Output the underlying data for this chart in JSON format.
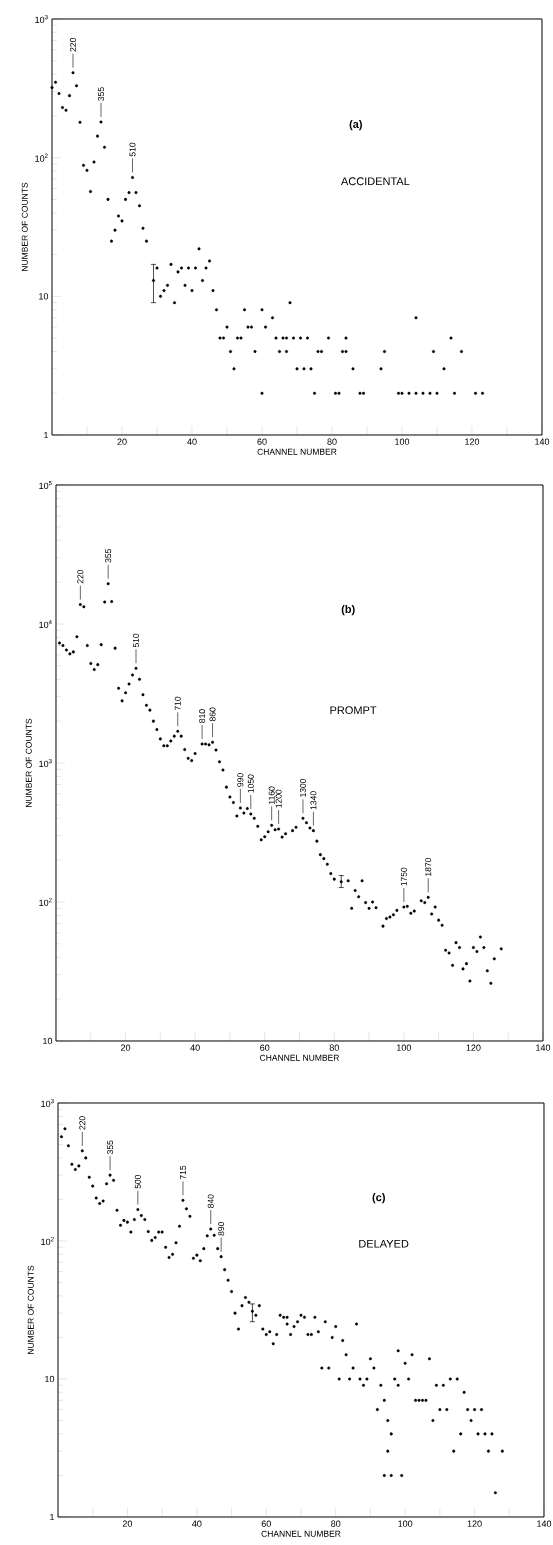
{
  "chart_data": [
    {
      "type": "scatter",
      "title": "(a)",
      "subtitle": "ACCIDENTAL",
      "xlabel": "CHANNEL NUMBER",
      "ylabel": "NUMBER OF COUNTS",
      "log": "y",
      "marker": "circle",
      "xlim": [
        0,
        140
      ],
      "ylim": [
        1,
        1000
      ],
      "xticks": [
        {
          "value": 10,
          "label": null
        },
        20,
        {
          "value": 30,
          "label": null
        },
        40,
        {
          "value": 50,
          "label": null
        },
        60,
        {
          "value": 70,
          "label": null
        },
        80,
        {
          "value": 90,
          "label": null
        },
        100,
        {
          "value": 110,
          "label": null
        },
        120,
        {
          "value": 130,
          "label": null
        },
        140
      ],
      "yticks": [
        1,
        10,
        {
          "value": 100,
          "label": "10$^{2}$"
        },
        {
          "value": 1000,
          "label": "10$^{3}$"
        }
      ],
      "series": [
        {
          "color": "#000000",
          "x": [
            0,
            1,
            2,
            3,
            4,
            5,
            6,
            7,
            8,
            9,
            10,
            11,
            12,
            13,
            14,
            15,
            16,
            17,
            18,
            19,
            20,
            21,
            22,
            23,
            24,
            25,
            26,
            27,
            30,
            31,
            32,
            33,
            34,
            35,
            36,
            37,
            38,
            39,
            40,
            41,
            42,
            43,
            44,
            45,
            46,
            47,
            48,
            49,
            50,
            51,
            52,
            53,
            54,
            55,
            56,
            57,
            58,
            60,
            60,
            61,
            63,
            64,
            65,
            66,
            67,
            67,
            68,
            69,
            70,
            71,
            72,
            73,
            74,
            75,
            76,
            77,
            79,
            81,
            82,
            83,
            84,
            84,
            86,
            88,
            89,
            94,
            95,
            99,
            100,
            102,
            104,
            104,
            106,
            108,
            109,
            110,
            112,
            114,
            115,
            117,
            121,
            123
          ],
          "values": [
            320,
            350,
            290,
            230,
            220,
            280,
            410,
            330,
            180,
            88,
            81,
            57,
            93,
            143,
            181,
            119,
            50,
            25,
            30,
            38,
            35,
            50,
            56,
            72,
            56,
            45,
            31,
            25,
            16,
            10,
            11,
            12,
            17,
            9,
            15,
            16,
            12,
            16,
            11,
            16,
            22,
            13,
            16,
            18,
            11,
            8,
            5,
            5,
            6,
            4,
            3,
            5,
            5,
            8,
            6,
            6,
            4,
            2,
            8,
            6,
            7,
            5,
            4,
            5,
            5,
            4,
            9,
            5,
            3,
            5,
            3,
            5,
            3,
            2,
            4,
            4,
            5,
            2,
            2,
            4,
            4,
            5,
            3,
            2,
            2,
            3,
            4,
            2,
            2,
            2,
            2,
            7,
            2,
            2,
            4,
            2,
            3,
            5,
            2,
            4,
            2,
            2
          ]
        },
        {
          "color": "#000000",
          "x": [
            29
          ],
          "values": [
            13
          ],
          "errors": [
            [
              9,
              17
            ]
          ]
        }
      ],
      "annotations": [
        {
          "text": "220",
          "x": 6,
          "y": 410
        },
        {
          "text": "355",
          "x": 14,
          "y": 181
        },
        {
          "text": "510",
          "x": 23,
          "y": 72
        }
      ]
    },
    {
      "type": "scatter",
      "title": "(b)",
      "subtitle": "PROMPT",
      "xlabel": "CHANNEL NUMBER",
      "ylabel": "NUMBER OF COUNTS",
      "log": "y",
      "marker": "circle",
      "xlim": [
        0,
        140
      ],
      "ylim": [
        10,
        100000
      ],
      "xticks": [
        {
          "value": 10,
          "label": null
        },
        20,
        {
          "value": 30,
          "label": null
        },
        40,
        {
          "value": 50,
          "label": null
        },
        60,
        {
          "value": 70,
          "label": null
        },
        80,
        {
          "value": 90,
          "label": null
        },
        100,
        {
          "value": 110,
          "label": null
        },
        120,
        {
          "value": 130,
          "label": null
        },
        140
      ],
      "yticks": [
        10,
        {
          "value": 100,
          "label": "10$^{2}$"
        },
        {
          "value": 1000,
          "label": "10$^{3}$"
        },
        {
          "value": 10000,
          "label": "10$^{4}$"
        },
        {
          "value": 100000,
          "label": "10$^{5}$"
        }
      ],
      "series": [
        {
          "color": "#000000",
          "x": [
            1,
            2,
            3,
            4,
            5,
            6,
            7,
            8,
            9,
            10,
            11,
            12,
            13,
            14,
            15,
            16,
            17,
            18,
            19,
            20,
            21,
            22,
            23,
            24,
            25,
            26,
            27,
            28,
            29,
            30,
            31,
            32,
            33,
            34,
            35,
            36,
            37,
            38,
            39,
            40,
            42,
            43,
            44,
            45,
            46,
            47,
            48,
            49,
            50,
            51,
            52,
            53,
            54,
            55,
            56,
            57,
            58,
            59,
            60,
            61,
            62,
            63,
            64,
            65,
            66,
            68,
            69,
            71,
            72,
            73,
            74,
            75,
            76,
            77,
            78,
            79,
            80,
            84,
            85,
            86,
            87,
            88,
            89,
            90,
            91,
            92,
            94,
            95,
            96,
            97,
            98,
            100,
            101,
            102,
            103,
            105,
            106,
            107,
            108,
            109,
            110,
            111,
            112,
            113,
            114,
            115,
            116,
            117,
            118,
            119,
            120,
            121,
            122,
            123,
            124,
            125,
            126,
            128
          ],
          "values": [
            7300,
            7000,
            6500,
            6100,
            6300,
            8100,
            13800,
            13300,
            7000,
            5200,
            4700,
            5100,
            7100,
            14400,
            19500,
            14500,
            6700,
            3450,
            2800,
            3200,
            3700,
            4300,
            4800,
            4000,
            3100,
            2600,
            2400,
            2000,
            1740,
            1490,
            1330,
            1330,
            1440,
            1560,
            1690,
            1560,
            1250,
            1080,
            1040,
            1170,
            1370,
            1370,
            1350,
            1410,
            1240,
            1020,
            890,
            670,
            570,
            520,
            416,
            475,
            436,
            470,
            430,
            400,
            350,
            280,
            295,
            320,
            356,
            331,
            335,
            293,
            310,
            326,
            345,
            400,
            372,
            341,
            326,
            274,
            219,
            205,
            187,
            160,
            146,
            142,
            90,
            121,
            109,
            142,
            99,
            90,
            100,
            91,
            67,
            76,
            78,
            81,
            87,
            92,
            93,
            83,
            86,
            102,
            99,
            108,
            82,
            92,
            74,
            68,
            45,
            43,
            35,
            51,
            47,
            33,
            36,
            27,
            47,
            44,
            56,
            47,
            32,
            26,
            39,
            46
          ]
        },
        {
          "color": "#000000",
          "x": [
            82
          ],
          "values": [
            140
          ],
          "errors": [
            [
              127,
              155
            ]
          ]
        }
      ],
      "annotations": [
        {
          "text": "220",
          "x": 7,
          "y": 13800
        },
        {
          "text": "355",
          "x": 15,
          "y": 19500
        },
        {
          "text": "510",
          "x": 23,
          "y": 4800
        },
        {
          "text": "710",
          "x": 35,
          "y": 1690
        },
        {
          "text": "810",
          "x": 42,
          "y": 1370
        },
        {
          "text": "860",
          "x": 45,
          "y": 1410
        },
        {
          "text": "990",
          "x": 53,
          "y": 475
        },
        {
          "text": "1050",
          "x": 56,
          "y": 430
        },
        {
          "text": "1160",
          "x": 62,
          "y": 356
        },
        {
          "text": "1200",
          "x": 64,
          "y": 335
        },
        {
          "text": "1300",
          "x": 71,
          "y": 400
        },
        {
          "text": "1340",
          "x": 74,
          "y": 326
        },
        {
          "text": "1750",
          "x": 100,
          "y": 92
        },
        {
          "text": "1870",
          "x": 107,
          "y": 108
        }
      ]
    },
    {
      "type": "scatter",
      "title": "(c)",
      "subtitle": "DELAYED",
      "xlabel": "CHANNEL NUMBER",
      "ylabel": "NUMBER OF COUNTS",
      "log": "y",
      "marker": "circle",
      "xlim": [
        0,
        140
      ],
      "ylim": [
        1,
        1000
      ],
      "xticks": [
        {
          "value": 10,
          "label": null
        },
        20,
        {
          "value": 30,
          "label": null
        },
        40,
        {
          "value": 50,
          "label": null
        },
        60,
        {
          "value": 70,
          "label": null
        },
        80,
        {
          "value": 90,
          "label": null
        },
        100,
        {
          "value": 110,
          "label": null
        },
        120,
        {
          "value": 130,
          "label": null
        },
        140
      ],
      "yticks": [
        1,
        10,
        {
          "value": 100,
          "label": "10$^{2}$"
        },
        {
          "value": 1000,
          "label": "10$^{3}$"
        }
      ],
      "series": [
        {
          "color": "#000000",
          "x": [
            1,
            2,
            3,
            4,
            5,
            6,
            7,
            8,
            9,
            10,
            11,
            12,
            13,
            14,
            15,
            16,
            17,
            18,
            19,
            20,
            21,
            22,
            23,
            24,
            25,
            26,
            27,
            28,
            29,
            30,
            31,
            32,
            33,
            34,
            35,
            36,
            37,
            38,
            39,
            40,
            41,
            42,
            43,
            44,
            45,
            46,
            47,
            48,
            49,
            50,
            51,
            52,
            53,
            54,
            55,
            57,
            58,
            59,
            60,
            61,
            62,
            63,
            64,
            65,
            66,
            66,
            67,
            68,
            69,
            70,
            71,
            72,
            73,
            74,
            75,
            76,
            77,
            78,
            79,
            80,
            81,
            82,
            83,
            84,
            85,
            86,
            87,
            88,
            89,
            90,
            91,
            92,
            93,
            94,
            94,
            95,
            95,
            96,
            96,
            97,
            98,
            98,
            99,
            100,
            101,
            102,
            103,
            104,
            105,
            106,
            107,
            108,
            109,
            110,
            111,
            112,
            113,
            114,
            115,
            116,
            117,
            118,
            119,
            120,
            121,
            122,
            123,
            124,
            125,
            126,
            128
          ],
          "values": [
            570,
            650,
            490,
            360,
            330,
            350,
            450,
            400,
            290,
            250,
            205,
            187,
            195,
            260,
            300,
            275,
            167,
            130,
            141,
            137,
            116,
            143,
            169,
            153,
            143,
            117,
            101,
            106,
            116,
            116,
            90,
            76,
            80,
            97,
            128,
            197,
            171,
            151,
            75,
            79,
            72,
            88,
            109,
            122,
            110,
            88,
            77,
            62,
            52,
            43,
            30,
            23,
            34,
            39,
            36,
            29,
            34,
            23,
            21,
            22,
            18,
            21,
            29,
            28,
            25,
            28,
            21,
            24,
            26,
            29,
            28,
            21,
            21,
            28,
            22,
            12,
            26,
            12,
            20,
            24,
            10,
            19,
            15,
            10,
            12,
            25,
            10,
            9,
            10,
            14,
            12,
            6,
            9,
            7,
            2,
            5,
            3,
            4,
            2,
            10,
            16,
            9,
            2,
            13,
            10,
            15,
            7,
            7,
            7,
            7,
            14,
            5,
            9,
            6,
            9,
            6,
            10,
            3,
            10,
            4,
            8,
            6,
            5,
            6,
            4,
            6,
            4,
            3,
            4,
            1.5,
            3
          ]
        },
        {
          "color": "#000000",
          "x": [
            56
          ],
          "values": [
            31
          ],
          "errors": [
            [
              26,
              35
            ]
          ]
        }
      ],
      "annotations": [
        {
          "text": "220",
          "x": 7,
          "y": 450
        },
        {
          "text": "355",
          "x": 15,
          "y": 300
        },
        {
          "text": "500",
          "x": 23,
          "y": 169
        },
        {
          "text": "715",
          "x": 36,
          "y": 197
        },
        {
          "text": "840",
          "x": 44,
          "y": 122
        },
        {
          "text": "890",
          "x": 47,
          "y": 77
        }
      ]
    }
  ]
}
